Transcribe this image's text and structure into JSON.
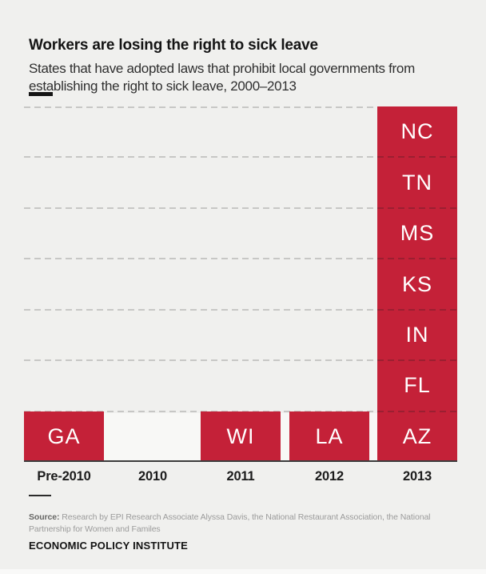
{
  "header": {
    "title": "Workers are losing the right to sick leave",
    "subtitle_line1": "States that have adopted laws that prohibit local governments from",
    "subtitle_line2": "establishing the right to sick leave, 2000–2013"
  },
  "chart_data": {
    "type": "bar",
    "stacked": true,
    "title": "Workers are losing the right to sick leave",
    "subtitle": "States that have adopted laws that prohibit local governments from establishing the right to sick leave, 2000–2013",
    "categories": [
      "Pre-2010",
      "2010",
      "2011",
      "2012",
      "2013"
    ],
    "values": [
      1,
      0,
      1,
      1,
      7
    ],
    "segments_bottom_to_top": [
      [
        "GA"
      ],
      [],
      [
        "WI"
      ],
      [
        "LA"
      ],
      [
        "AZ",
        "FL",
        "IN",
        "KS",
        "MS",
        "TN",
        "NC"
      ]
    ],
    "xlabel": "",
    "ylabel": "",
    "ylim": [
      0,
      7
    ],
    "gridlines": [
      1,
      2,
      3,
      4,
      5,
      6,
      7
    ],
    "grid_style": "dashed-horizontal",
    "legend": "none",
    "bar_color": "#c42138",
    "segment_divider_color": "#9b1f31",
    "bar_label_color": "#ffffff"
  },
  "footer": {
    "source_label": "Source:",
    "source_text": " Research by EPI Research Associate Alyssa Davis, the National Restaurant Association, the National Partnership for Women and Familes",
    "org_name": "ECONOMIC POLICY INSTITUTE"
  },
  "colors": {
    "page_bg": "#f0f0ee",
    "gridline": "#c7c7c5",
    "baseline": "#3c3c3c",
    "zero_band": "#f8f8f6"
  }
}
